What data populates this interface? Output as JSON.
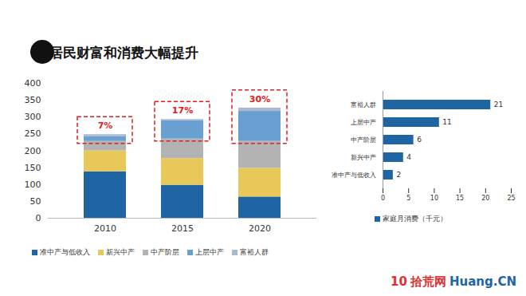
{
  "title": "居民财富和消费大幅提升",
  "watermark": [
    "10",
    "拾荒网",
    "Huang.CN"
  ],
  "chart_data": [
    {
      "type": "bar",
      "stacked": true,
      "legend": "bottom",
      "categories": [
        "2010",
        "2015",
        "2020"
      ],
      "series": [
        {
          "name": "准中产与低收入",
          "color": "#1f64a3",
          "values": [
            138,
            98,
            63
          ]
        },
        {
          "name": "新兴中产",
          "color": "#e9c85a",
          "values": [
            62,
            79,
            85
          ]
        },
        {
          "name": "中产阶层",
          "color": "#b3b3b3",
          "values": [
            28,
            58,
            80
          ]
        },
        {
          "name": "上层中产",
          "color": "#6a9fd2",
          "values": [
            14,
            55,
            89
          ]
        },
        {
          "name": "富裕人群",
          "color": "#a9b9cf",
          "values": [
            6,
            3,
            10
          ]
        }
      ],
      "annotations": [
        {
          "category": "2010",
          "text": "7%"
        },
        {
          "category": "2015",
          "text": "17%"
        },
        {
          "category": "2020",
          "text": "30%"
        }
      ],
      "ylim": [
        0,
        400
      ],
      "yticks": [
        0,
        50,
        100,
        150,
        200,
        250,
        300,
        350,
        400
      ]
    },
    {
      "type": "bar",
      "orientation": "horizontal",
      "legend": "bottom",
      "data_labels": true,
      "categories": [
        "富裕人群",
        "上层中产",
        "中产阶层",
        "新兴中产",
        "准中产与低收入"
      ],
      "series": [
        {
          "name": "家庭月消费（千元）",
          "color": "#1f64a3",
          "values": [
            21,
            11,
            6,
            4,
            2
          ]
        }
      ],
      "xlim": [
        0,
        25
      ],
      "xticks": [
        0,
        5,
        10,
        15,
        20,
        25
      ]
    }
  ]
}
